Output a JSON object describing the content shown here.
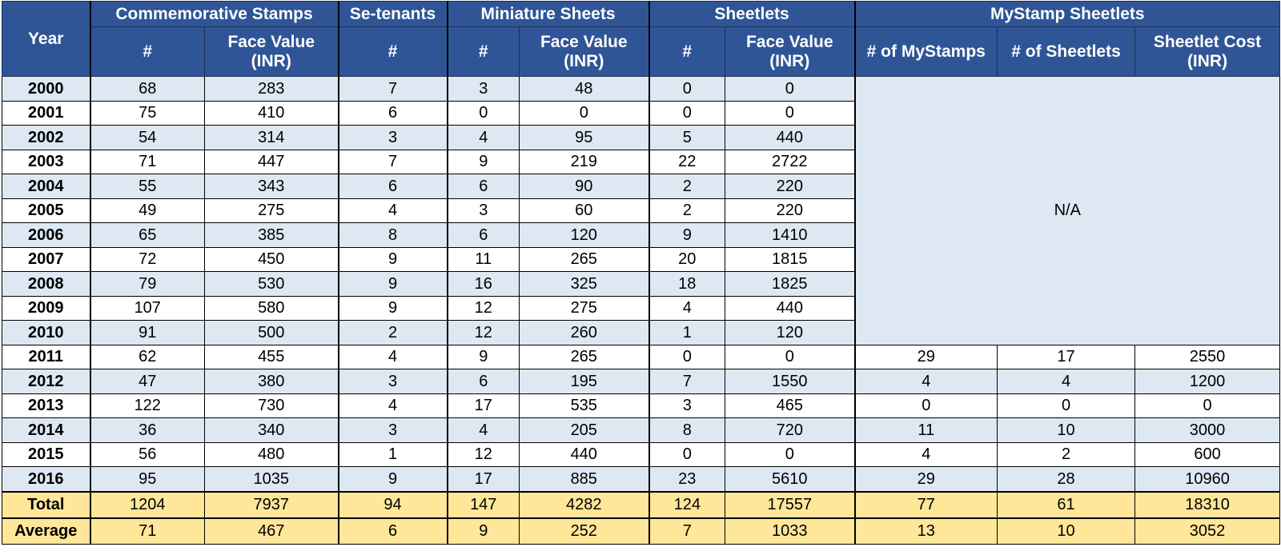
{
  "table": {
    "header": {
      "year": "Year",
      "groups": [
        "Commemorative Stamps",
        "Se-tenants",
        "Miniature Sheets",
        "Sheetlets",
        "MyStamp Sheetlets"
      ],
      "columns": [
        "#",
        "Face Value (INR)",
        "#",
        "#",
        "Face Value (INR)",
        "#",
        "Face Value (INR)",
        "# of MyStamps",
        "# of Sheetlets",
        "Sheetlet Cost (INR)"
      ]
    },
    "na_label": "N/A",
    "rows": [
      {
        "year": 2000,
        "values": [
          68,
          283,
          7,
          3,
          48,
          0,
          0
        ]
      },
      {
        "year": 2001,
        "values": [
          75,
          410,
          6,
          0,
          0,
          0,
          0
        ]
      },
      {
        "year": 2002,
        "values": [
          54,
          314,
          3,
          4,
          95,
          5,
          440
        ]
      },
      {
        "year": 2003,
        "values": [
          71,
          447,
          7,
          9,
          219,
          22,
          2722
        ]
      },
      {
        "year": 2004,
        "values": [
          55,
          343,
          6,
          6,
          90,
          2,
          220
        ]
      },
      {
        "year": 2005,
        "values": [
          49,
          275,
          4,
          3,
          60,
          2,
          220
        ]
      },
      {
        "year": 2006,
        "values": [
          65,
          385,
          8,
          6,
          120,
          9,
          1410
        ]
      },
      {
        "year": 2007,
        "values": [
          72,
          450,
          9,
          11,
          265,
          20,
          1815
        ]
      },
      {
        "year": 2008,
        "values": [
          79,
          530,
          9,
          16,
          325,
          18,
          1825
        ]
      },
      {
        "year": 2009,
        "values": [
          107,
          580,
          9,
          12,
          275,
          4,
          440
        ]
      },
      {
        "year": 2010,
        "values": [
          91,
          500,
          2,
          12,
          260,
          1,
          120
        ]
      },
      {
        "year": 2011,
        "values": [
          62,
          455,
          4,
          9,
          265,
          0,
          0,
          29,
          17,
          2550
        ]
      },
      {
        "year": 2012,
        "values": [
          47,
          380,
          3,
          6,
          195,
          7,
          1550,
          4,
          4,
          1200
        ]
      },
      {
        "year": 2013,
        "values": [
          122,
          730,
          4,
          17,
          535,
          3,
          465,
          0,
          0,
          0
        ]
      },
      {
        "year": 2014,
        "values": [
          36,
          340,
          3,
          4,
          205,
          8,
          720,
          11,
          10,
          3000
        ]
      },
      {
        "year": 2015,
        "values": [
          56,
          480,
          1,
          12,
          440,
          0,
          0,
          4,
          2,
          600
        ]
      },
      {
        "year": 2016,
        "values": [
          95,
          1035,
          9,
          17,
          885,
          23,
          5610,
          29,
          28,
          10960
        ]
      }
    ],
    "total": {
      "label": "Total",
      "values": [
        1204,
        7937,
        94,
        147,
        4282,
        124,
        17557,
        77,
        61,
        18310
      ]
    },
    "average": {
      "label": "Average",
      "values": [
        71,
        467,
        6,
        9,
        252,
        7,
        1033,
        13,
        10,
        3052
      ]
    }
  }
}
